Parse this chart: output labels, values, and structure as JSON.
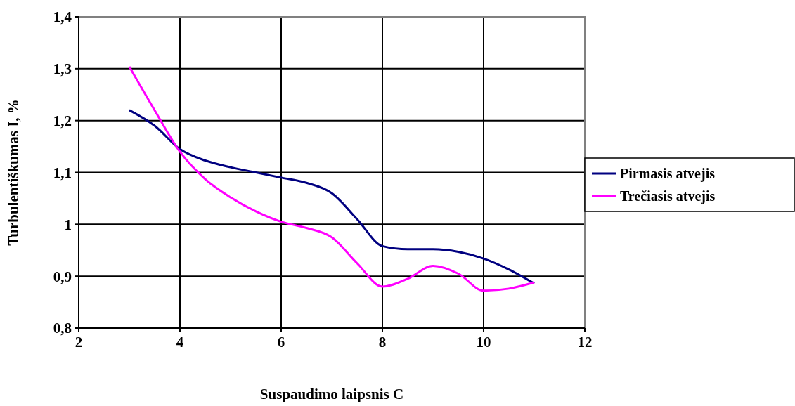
{
  "chart_data": {
    "type": "line",
    "xlabel": "Suspaudimo laipsnis C",
    "ylabel": "Turbulentiškumas I, %",
    "x": [
      3,
      3.5,
      4,
      4.5,
      5,
      5.5,
      6,
      6.5,
      7,
      7.5,
      8,
      8.5,
      9,
      9.5,
      10,
      10.5,
      11
    ],
    "series": [
      {
        "name": "Pirmasis atvejis",
        "color": "#000080",
        "values": [
          1.22,
          1.19,
          1.145,
          1.123,
          1.11,
          1.1,
          1.09,
          1.08,
          1.06,
          1.01,
          0.958,
          0.952,
          0.952,
          0.947,
          0.934,
          0.913,
          0.886
        ]
      },
      {
        "name": "Trečiasis atvejis",
        "color": "#ff00ff",
        "values": [
          1.304,
          1.22,
          1.14,
          1.087,
          1.052,
          1.025,
          1.005,
          0.993,
          0.975,
          0.925,
          0.88,
          0.895,
          0.92,
          0.905,
          0.872,
          0.876,
          0.888
        ]
      }
    ],
    "xlim": [
      2,
      12
    ],
    "xticks": [
      2,
      4,
      6,
      8,
      10,
      12
    ],
    "ylim": [
      0.8,
      1.4
    ],
    "yticks": [
      {
        "value": 0.8,
        "label": "0,8"
      },
      {
        "value": 0.9,
        "label": "0,9"
      },
      {
        "value": 1,
        "label": "1"
      },
      {
        "value": 1.1,
        "label": "1,1"
      },
      {
        "value": 1.2,
        "label": "1,2"
      },
      {
        "value": 1.3,
        "label": "1,3"
      },
      {
        "value": 1.4,
        "label": "1,4"
      }
    ],
    "grid": true,
    "legend": "right",
    "marker": "none",
    "line_style": "solid"
  }
}
